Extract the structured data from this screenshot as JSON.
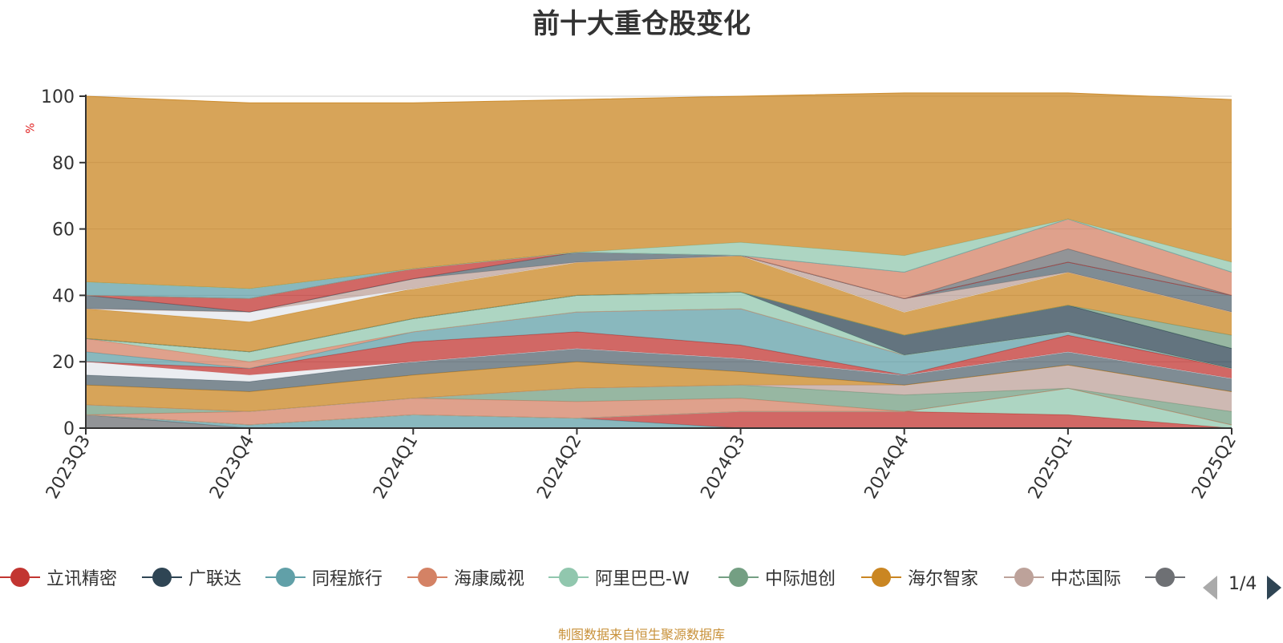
{
  "chart_data": {
    "type": "area",
    "stacked": true,
    "title": "前十大重仓股变化",
    "ylabel": "%",
    "ylim": [
      0,
      100
    ],
    "yticks": [
      "0",
      "20",
      "40",
      "60",
      "80",
      "100"
    ],
    "categories": [
      "2023Q3",
      "2023Q4",
      "2024Q1",
      "2024Q2",
      "2024Q3",
      "2024Q4",
      "2025Q1",
      "2025Q2"
    ],
    "series": [
      {
        "name": "",
        "color": "#6e7074",
        "values": [
          4,
          0,
          0,
          0,
          0,
          0,
          0,
          0
        ]
      },
      {
        "name": "",
        "color": "#61a0a8",
        "values": [
          0,
          1,
          4,
          3,
          0,
          0,
          0,
          0
        ]
      },
      {
        "name": "",
        "color": "#c23531",
        "values": [
          0,
          0,
          0,
          0,
          5,
          5,
          4,
          0
        ]
      },
      {
        "name": "",
        "color": "#91c7ae",
        "values": [
          0,
          0,
          0,
          0,
          0,
          0,
          8,
          1
        ]
      },
      {
        "name": "",
        "color": "#d48265",
        "values": [
          0,
          4,
          5,
          5,
          4,
          0,
          0,
          0
        ]
      },
      {
        "name": "",
        "color": "#749f83",
        "values": [
          3,
          0,
          0,
          4,
          4,
          5,
          0,
          4
        ]
      },
      {
        "name": "",
        "color": "#bda29a",
        "values": [
          0,
          0,
          0,
          0,
          0,
          3,
          7,
          6
        ]
      },
      {
        "name": "",
        "color": "#ca8622",
        "values": [
          6,
          6,
          7,
          8,
          4,
          0,
          0,
          0
        ]
      },
      {
        "name": "",
        "color": "#546570",
        "values": [
          3,
          3,
          4,
          4,
          4,
          3,
          4,
          4
        ]
      },
      {
        "name": "",
        "color": "#e4e7ec",
        "values": [
          4,
          2,
          0,
          0,
          0,
          0,
          0,
          0
        ]
      },
      {
        "name": "",
        "color": "#c23531",
        "values": [
          0,
          2,
          6,
          5,
          4,
          0,
          5,
          3
        ]
      },
      {
        "name": "",
        "color": "#61a0a8",
        "values": [
          3,
          0,
          3,
          6,
          11,
          6,
          1,
          0
        ]
      },
      {
        "name": "",
        "color": "#d48265",
        "values": [
          4,
          2,
          0,
          0,
          0,
          0,
          0,
          0
        ]
      },
      {
        "name": "",
        "color": "#91c7ae",
        "values": [
          0,
          3,
          4,
          5,
          5,
          0,
          0,
          0
        ]
      },
      {
        "name": "",
        "color": "#2f4554",
        "values": [
          0,
          0,
          0,
          0,
          0,
          6,
          8,
          6
        ]
      },
      {
        "name": "",
        "color": "#749f83",
        "values": [
          0,
          0,
          0,
          0,
          0,
          0,
          0,
          4
        ]
      },
      {
        "name": "",
        "color": "#ca8622",
        "values": [
          9,
          9,
          9,
          10,
          11,
          7,
          10,
          7
        ]
      },
      {
        "name": "",
        "color": "#e4e7ec",
        "values": [
          0,
          3,
          0,
          0,
          0,
          0,
          0,
          0
        ]
      },
      {
        "name": "",
        "color": "#bda29a",
        "values": [
          0,
          0,
          3,
          0,
          0,
          4,
          0,
          0
        ]
      },
      {
        "name": "",
        "color": "#546570",
        "values": [
          4,
          0,
          0,
          3,
          0,
          0,
          3,
          5
        ]
      },
      {
        "name": "",
        "color": "#c23531",
        "values": [
          0,
          4,
          3,
          0,
          0,
          0,
          0,
          0
        ]
      },
      {
        "name": "",
        "color": "#6e7074",
        "values": [
          0,
          0,
          0,
          0,
          0,
          0,
          4,
          0
        ]
      },
      {
        "name": "",
        "color": "#d48265",
        "values": [
          0,
          0,
          0,
          0,
          0,
          8,
          9,
          7
        ]
      },
      {
        "name": "",
        "color": "#61a0a8",
        "values": [
          4,
          3,
          0,
          0,
          0,
          0,
          0,
          0
        ]
      },
      {
        "name": "",
        "color": "#91c7ae",
        "values": [
          0,
          0,
          0,
          0,
          4,
          5,
          0,
          3
        ]
      },
      {
        "name": "",
        "color": "#ca8622",
        "values": [
          56,
          56,
          50,
          46,
          44,
          49,
          38,
          49
        ]
      }
    ]
  },
  "legend": {
    "items": [
      {
        "label": "立讯精密",
        "color": "#c23531"
      },
      {
        "label": "广联达",
        "color": "#2f4554"
      },
      {
        "label": "同程旅行",
        "color": "#61a0a8"
      },
      {
        "label": "海康威视",
        "color": "#d48265"
      },
      {
        "label": "阿里巴巴-W",
        "color": "#91c7ae"
      },
      {
        "label": "中际旭创",
        "color": "#749f83"
      },
      {
        "label": "海尔智家",
        "color": "#ca8622"
      },
      {
        "label": "中芯国际",
        "color": "#bda29a"
      },
      {
        "label": "",
        "color": "#6e7074"
      }
    ],
    "page": "1/4"
  },
  "source": "制图数据来自恒生聚源数据库"
}
